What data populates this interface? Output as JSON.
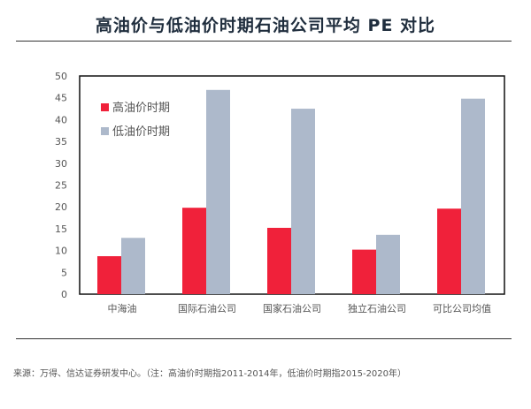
{
  "title": "高油价与低油价时期石油公司平均 PE 对比",
  "footnote": "来源：万得、信达证券研发中心。（注：高油价时期指2011-2014年，低油价时期指2015-2020年）",
  "chart_data": {
    "type": "bar",
    "title": "高油价与低油价时期石油公司平均 PE 对比",
    "categories": [
      "中海油",
      "国际石油公司",
      "国家石油公司",
      "独立石油公司",
      "可比公司均值"
    ],
    "series": [
      {
        "name": "高油价时期",
        "color": "#f0213a",
        "values": [
          8.7,
          19.8,
          15.2,
          10.2,
          19.6
        ]
      },
      {
        "name": "低油价时期",
        "color": "#adb9cb",
        "values": [
          12.9,
          46.8,
          42.5,
          13.6,
          44.8
        ]
      }
    ],
    "ylim": [
      0,
      50
    ],
    "yticks": [
      0,
      5,
      10,
      15,
      20,
      25,
      30,
      35,
      40,
      45,
      50
    ],
    "grid": false,
    "legend": "top-left"
  }
}
